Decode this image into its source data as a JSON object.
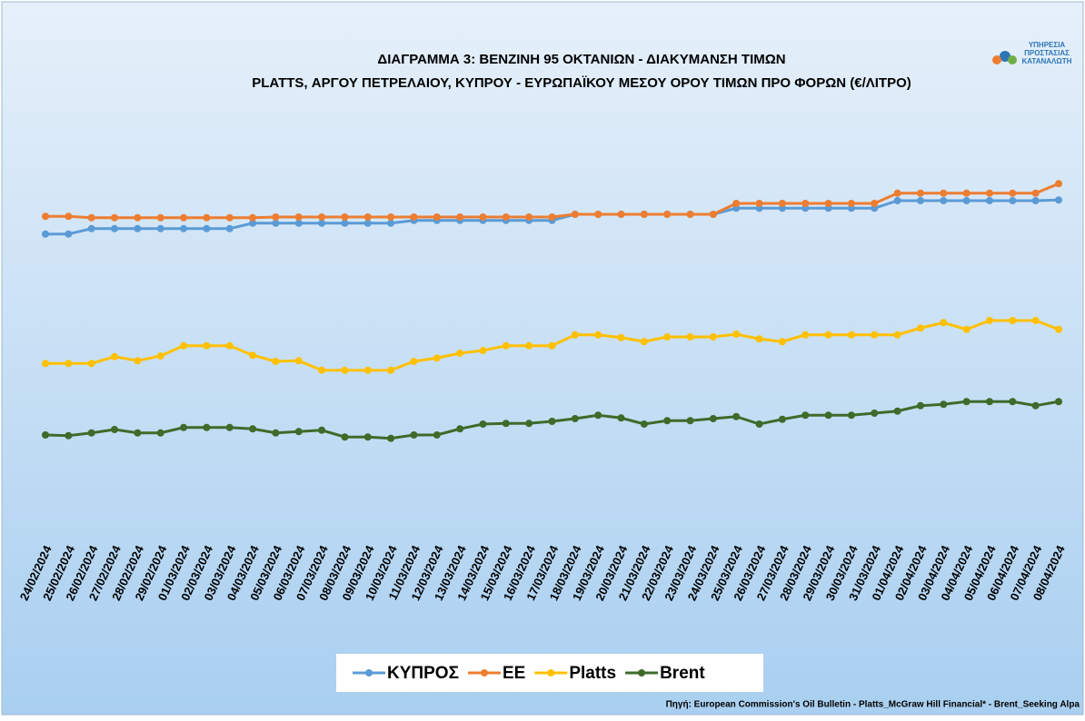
{
  "chart_data": {
    "type": "line",
    "title": "ΔΙΑΓΡΑΜΜΑ 3: ΒΕΝΖΙΝΗ 95 ΟΚΤΑΝΙΩΝ - ΔΙΑΚΥΜΑΝΣΗ ΤΙΜΩΝ",
    "subtitle": "PLATTS, ΑΡΓΟΥ ΠΕΤΡΕΛΑΙΟΥ, ΚΥΠΡΟΥ - ΕΥΡΩΠΑΪΚΟΥ ΜΕΣΟΥ ΟΡΟΥ ΤΙΜΩΝ ΠΡΟ ΦΟΡΩΝ (€/ΛΙΤΡΟ)",
    "logo": [
      "ΥΠΗΡΕΣΙΑ",
      "ΠΡΟΣΤΑΣΙΑΣ",
      "ΚΑΤΑΝΑΛΩΤΗ"
    ],
    "source": "Πηγή: European Commission's Oil Bulletin - Platts_McGraw Hill Financial* - Brent_Seeking Alpa",
    "categories": [
      "24/02/2024",
      "25/02/2024",
      "26/02/2024",
      "27/02/2024",
      "28/02/2024",
      "29/02/2024",
      "01/03/2024",
      "02/03/2024",
      "03/03/2024",
      "04/03/2024",
      "05/03/2024",
      "06/03/2024",
      "07/03/2024",
      "08/03/2024",
      "09/03/2024",
      "10/03/2024",
      "11/03/2024",
      "12/03/2024",
      "13/03/2024",
      "14/03/2024",
      "15/03/2024",
      "16/03/2024",
      "17/03/2024",
      "18/03/2024",
      "19/03/2024",
      "20/03/2024",
      "21/03/2024",
      "22/03/2024",
      "23/03/2024",
      "24/03/2024",
      "25/03/2024",
      "26/03/2024",
      "27/03/2024",
      "28/03/2024",
      "29/03/2024",
      "30/03/2024",
      "31/03/2024",
      "01/04/2024",
      "02/04/2024",
      "03/04/2024",
      "04/04/2024",
      "05/04/2024",
      "06/04/2024",
      "07/04/2024",
      "08/04/2024"
    ],
    "ylim": [
      0.4,
      1.0
    ],
    "series": [
      {
        "name": "ΚΥΠΡΟΣ",
        "color": "#5b9bd5",
        "values": [
          0.843,
          0.843,
          0.851,
          0.851,
          0.851,
          0.851,
          0.851,
          0.851,
          0.851,
          0.859,
          0.859,
          0.859,
          0.859,
          0.859,
          0.859,
          0.859,
          0.863,
          0.863,
          0.863,
          0.863,
          0.863,
          0.863,
          0.863,
          0.872,
          0.872,
          0.872,
          0.872,
          0.872,
          0.872,
          0.872,
          0.881,
          0.881,
          0.881,
          0.881,
          0.881,
          0.881,
          0.881,
          0.892,
          0.892,
          0.892,
          0.892,
          0.892,
          0.892,
          0.892,
          0.893
        ]
      },
      {
        "name": "ΕΕ",
        "color": "#ed7d31",
        "values": [
          0.869,
          0.869,
          0.867,
          0.867,
          0.867,
          0.867,
          0.867,
          0.867,
          0.867,
          0.867,
          0.868,
          0.868,
          0.868,
          0.868,
          0.868,
          0.868,
          0.868,
          0.868,
          0.868,
          0.868,
          0.868,
          0.868,
          0.868,
          0.872,
          0.872,
          0.872,
          0.872,
          0.872,
          0.872,
          0.872,
          0.888,
          0.888,
          0.888,
          0.888,
          0.888,
          0.888,
          0.888,
          0.903,
          0.903,
          0.903,
          0.903,
          0.903,
          0.903,
          0.903,
          0.917
        ]
      },
      {
        "name": "Platts",
        "color": "#ffc000",
        "values": [
          0.653,
          0.653,
          0.653,
          0.663,
          0.657,
          0.664,
          0.679,
          0.679,
          0.679,
          0.665,
          0.656,
          0.657,
          0.643,
          0.643,
          0.643,
          0.643,
          0.656,
          0.661,
          0.668,
          0.672,
          0.679,
          0.679,
          0.679,
          0.695,
          0.695,
          0.691,
          0.685,
          0.692,
          0.692,
          0.692,
          0.696,
          0.689,
          0.685,
          0.695,
          0.695,
          0.695,
          0.695,
          0.695,
          0.705,
          0.713,
          0.703,
          0.716,
          0.716,
          0.716,
          0.703
        ]
      },
      {
        "name": "Brent",
        "color": "#3e6b2a",
        "values": [
          0.548,
          0.547,
          0.551,
          0.556,
          0.551,
          0.551,
          0.559,
          0.559,
          0.559,
          0.557,
          0.551,
          0.553,
          0.555,
          0.545,
          0.545,
          0.543,
          0.548,
          0.548,
          0.557,
          0.564,
          0.565,
          0.565,
          0.568,
          0.572,
          0.577,
          0.573,
          0.564,
          0.569,
          0.569,
          0.572,
          0.575,
          0.564,
          0.571,
          0.577,
          0.577,
          0.577,
          0.58,
          0.583,
          0.591,
          0.593,
          0.597,
          0.597,
          0.597,
          0.591,
          0.597
        ]
      }
    ]
  }
}
